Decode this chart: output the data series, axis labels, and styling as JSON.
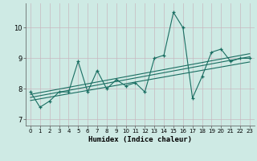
{
  "title": "",
  "xlabel": "Humidex (Indice chaleur)",
  "ylabel": "",
  "x_data": [
    0,
    1,
    2,
    3,
    4,
    5,
    6,
    7,
    8,
    9,
    10,
    11,
    12,
    13,
    14,
    15,
    16,
    17,
    18,
    19,
    20,
    21,
    22,
    23
  ],
  "y_main": [
    7.9,
    7.4,
    7.6,
    7.9,
    7.9,
    8.9,
    7.9,
    8.6,
    8.0,
    8.3,
    8.1,
    8.2,
    7.9,
    9.0,
    9.1,
    10.5,
    10.0,
    7.7,
    8.4,
    9.2,
    9.3,
    8.9,
    9.0,
    9.0
  ],
  "trend1_x": [
    0,
    23
  ],
  "trend1_y": [
    7.72,
    9.05
  ],
  "trend2_x": [
    0,
    23
  ],
  "trend2_y": [
    7.82,
    9.15
  ],
  "trend3_x": [
    0,
    23
  ],
  "trend3_y": [
    7.62,
    8.88
  ],
  "line_color": "#1a6e62",
  "bg_color": "#ceeae4",
  "grid_color": "#c8b8c0",
  "axis_color": "#555555",
  "ylim": [
    6.8,
    10.8
  ],
  "xlim": [
    -0.5,
    23.5
  ],
  "yticks": [
    7,
    8,
    9,
    10
  ],
  "xticks": [
    0,
    1,
    2,
    3,
    4,
    5,
    6,
    7,
    8,
    9,
    10,
    11,
    12,
    13,
    14,
    15,
    16,
    17,
    18,
    19,
    20,
    21,
    22,
    23
  ]
}
